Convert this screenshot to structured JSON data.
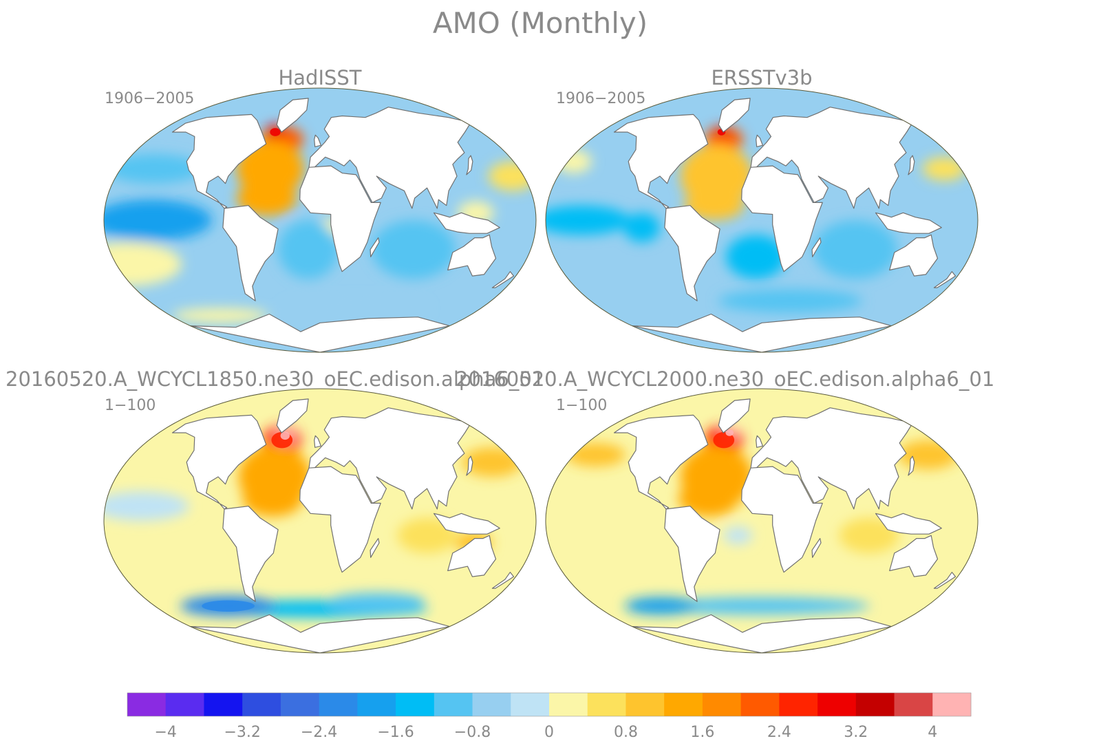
{
  "chart_data": {
    "type": "heatmap",
    "title": "AMO (Monthly)",
    "panels": [
      {
        "title": "HadISST",
        "period": "1906−2005",
        "land": "white",
        "blobs": [
          {
            "lon": -140,
            "lat": 0,
            "rx": 50,
            "ry": 14,
            "value": -2.0
          },
          {
            "lon": -150,
            "lat": 35,
            "rx": 40,
            "ry": 10,
            "value": -1.0
          },
          {
            "lon": -170,
            "lat": -30,
            "rx": 45,
            "ry": 15,
            "value": 0.2
          },
          {
            "lon": -40,
            "lat": 55,
            "rx": 18,
            "ry": 9,
            "value": 2.0
          },
          {
            "lon": -50,
            "lat": 60,
            "rx": 8,
            "ry": 5,
            "value": 3.0
          },
          {
            "lon": -45,
            "lat": 35,
            "rx": 28,
            "ry": 20,
            "value": 1.2
          },
          {
            "lon": -45,
            "lat": 15,
            "rx": 25,
            "ry": 12,
            "value": 1.4
          },
          {
            "lon": 10,
            "lat": -5,
            "rx": 10,
            "ry": 6,
            "value": 0.3
          },
          {
            "lon": -10,
            "lat": -20,
            "rx": 25,
            "ry": 20,
            "value": -1.0
          },
          {
            "lon": 80,
            "lat": -20,
            "rx": 35,
            "ry": 20,
            "value": -1.0
          },
          {
            "lon": 130,
            "lat": 5,
            "rx": 15,
            "ry": 8,
            "value": 0.3
          },
          {
            "lon": 170,
            "lat": 30,
            "rx": 20,
            "ry": 10,
            "value": 0.4
          },
          {
            "lon": 40,
            "lat": -60,
            "rx": 60,
            "ry": 6,
            "value": -0.8
          },
          {
            "lon": -120,
            "lat": -65,
            "rx": 40,
            "ry": 5,
            "value": 0.3
          }
        ],
        "base": -0.5
      },
      {
        "title": "ERSSTv3b",
        "period": "1906−2005",
        "land": "white",
        "blobs": [
          {
            "lon": -150,
            "lat": 0,
            "rx": 40,
            "ry": 10,
            "value": -1.6
          },
          {
            "lon": -100,
            "lat": -5,
            "rx": 15,
            "ry": 10,
            "value": -1.6
          },
          {
            "lon": -40,
            "lat": 55,
            "rx": 16,
            "ry": 9,
            "value": 2.0
          },
          {
            "lon": -45,
            "lat": 60,
            "rx": 6,
            "ry": 4,
            "value": 2.8
          },
          {
            "lon": -40,
            "lat": 30,
            "rx": 30,
            "ry": 22,
            "value": 1.0
          },
          {
            "lon": -40,
            "lat": 10,
            "rx": 25,
            "ry": 10,
            "value": 0.8
          },
          {
            "lon": -5,
            "lat": -25,
            "rx": 25,
            "ry": 15,
            "value": -1.4
          },
          {
            "lon": 80,
            "lat": -20,
            "rx": 35,
            "ry": 20,
            "value": -1.0
          },
          {
            "lon": 165,
            "lat": 35,
            "rx": 18,
            "ry": 8,
            "value": 0.4
          },
          {
            "lon": -175,
            "lat": 40,
            "rx": 15,
            "ry": 8,
            "value": 0.3
          },
          {
            "lon": 30,
            "lat": -55,
            "rx": 60,
            "ry": 8,
            "value": -1.0
          }
        ],
        "base": -0.6
      },
      {
        "title": "20160520.A_WCYCL1850.ne30_oEC.edison.alpha6_01",
        "period": "1−100",
        "land": "white",
        "blobs": [
          {
            "lon": -40,
            "lat": 55,
            "rx": 16,
            "ry": 10,
            "value": 2.6
          },
          {
            "lon": -38,
            "lat": 58,
            "rx": 7,
            "ry": 5,
            "value": 4.2
          },
          {
            "lon": -40,
            "lat": 30,
            "rx": 30,
            "ry": 22,
            "value": 1.3
          },
          {
            "lon": -40,
            "lat": 15,
            "rx": 25,
            "ry": 12,
            "value": 1.4
          },
          {
            "lon": 160,
            "lat": 40,
            "rx": 25,
            "ry": 10,
            "value": 0.8
          },
          {
            "lon": -150,
            "lat": 10,
            "rx": 40,
            "ry": 10,
            "value": -0.3
          },
          {
            "lon": 0,
            "lat": -60,
            "rx": 90,
            "ry": 6,
            "value": -1.6
          },
          {
            "lon": -100,
            "lat": -58,
            "rx": 40,
            "ry": 7,
            "value": -2.4
          },
          {
            "lon": 60,
            "lat": -55,
            "rx": 40,
            "ry": 6,
            "value": -1.2
          },
          {
            "lon": 90,
            "lat": -10,
            "rx": 25,
            "ry": 12,
            "value": 0.6
          },
          {
            "lon": 130,
            "lat": -15,
            "rx": 15,
            "ry": 8,
            "value": 0.8
          }
        ],
        "base": 0.3
      },
      {
        "title": "20160520.A_WCYCL2000.ne30_oEC.edison.alpha6_01",
        "period": "1−100",
        "land": "white",
        "blobs": [
          {
            "lon": -40,
            "lat": 55,
            "rx": 16,
            "ry": 10,
            "value": 2.4
          },
          {
            "lon": -36,
            "lat": 60,
            "rx": 6,
            "ry": 4,
            "value": 4.0
          },
          {
            "lon": -40,
            "lat": 30,
            "rx": 30,
            "ry": 22,
            "value": 1.2
          },
          {
            "lon": -45,
            "lat": 15,
            "rx": 25,
            "ry": 12,
            "value": 1.5
          },
          {
            "lon": 160,
            "lat": 45,
            "rx": 25,
            "ry": 10,
            "value": 1.0
          },
          {
            "lon": -160,
            "lat": 45,
            "rx": 25,
            "ry": 8,
            "value": 0.8
          },
          {
            "lon": -20,
            "lat": -10,
            "rx": 12,
            "ry": 6,
            "value": -0.4
          },
          {
            "lon": 0,
            "lat": -58,
            "rx": 90,
            "ry": 6,
            "value": -1.2
          },
          {
            "lon": -110,
            "lat": -58,
            "rx": 30,
            "ry": 6,
            "value": -2.0
          },
          {
            "lon": 90,
            "lat": -10,
            "rx": 25,
            "ry": 12,
            "value": 0.6
          }
        ],
        "base": 0.3
      }
    ],
    "colorbar": {
      "levels": [
        -4.4,
        -4,
        -3.6,
        -3.2,
        -2.8,
        -2.4,
        -2,
        -1.6,
        -1.2,
        -0.8,
        -0.4,
        0,
        0.4,
        0.8,
        1.2,
        1.6,
        2,
        2.4,
        2.8,
        3.2,
        3.6,
        4,
        4.4
      ],
      "colors": [
        "#8a2be2",
        "#5a2cf0",
        "#1414f0",
        "#2e4ee0",
        "#3b6fe0",
        "#2b8ae8",
        "#16a0ee",
        "#00bdf5",
        "#55c4f2",
        "#97cff0",
        "#bfe3f5",
        "#fbf6a8",
        "#fce15c",
        "#fec42e",
        "#ffa800",
        "#ff8a00",
        "#ff5a00",
        "#ff2400",
        "#ee0000",
        "#c40000",
        "#d94545",
        "#ffb3b3"
      ],
      "tick_labels": [
        "−4",
        "−3.2",
        "−2.4",
        "−1.6",
        "−0.8",
        "0",
        "0.8",
        "1.6",
        "2.4",
        "3.2",
        "4"
      ],
      "tick_values": [
        -4,
        -3.2,
        -2.4,
        -1.6,
        -0.8,
        0,
        0.8,
        1.6,
        2.4,
        3.2,
        4
      ]
    }
  }
}
